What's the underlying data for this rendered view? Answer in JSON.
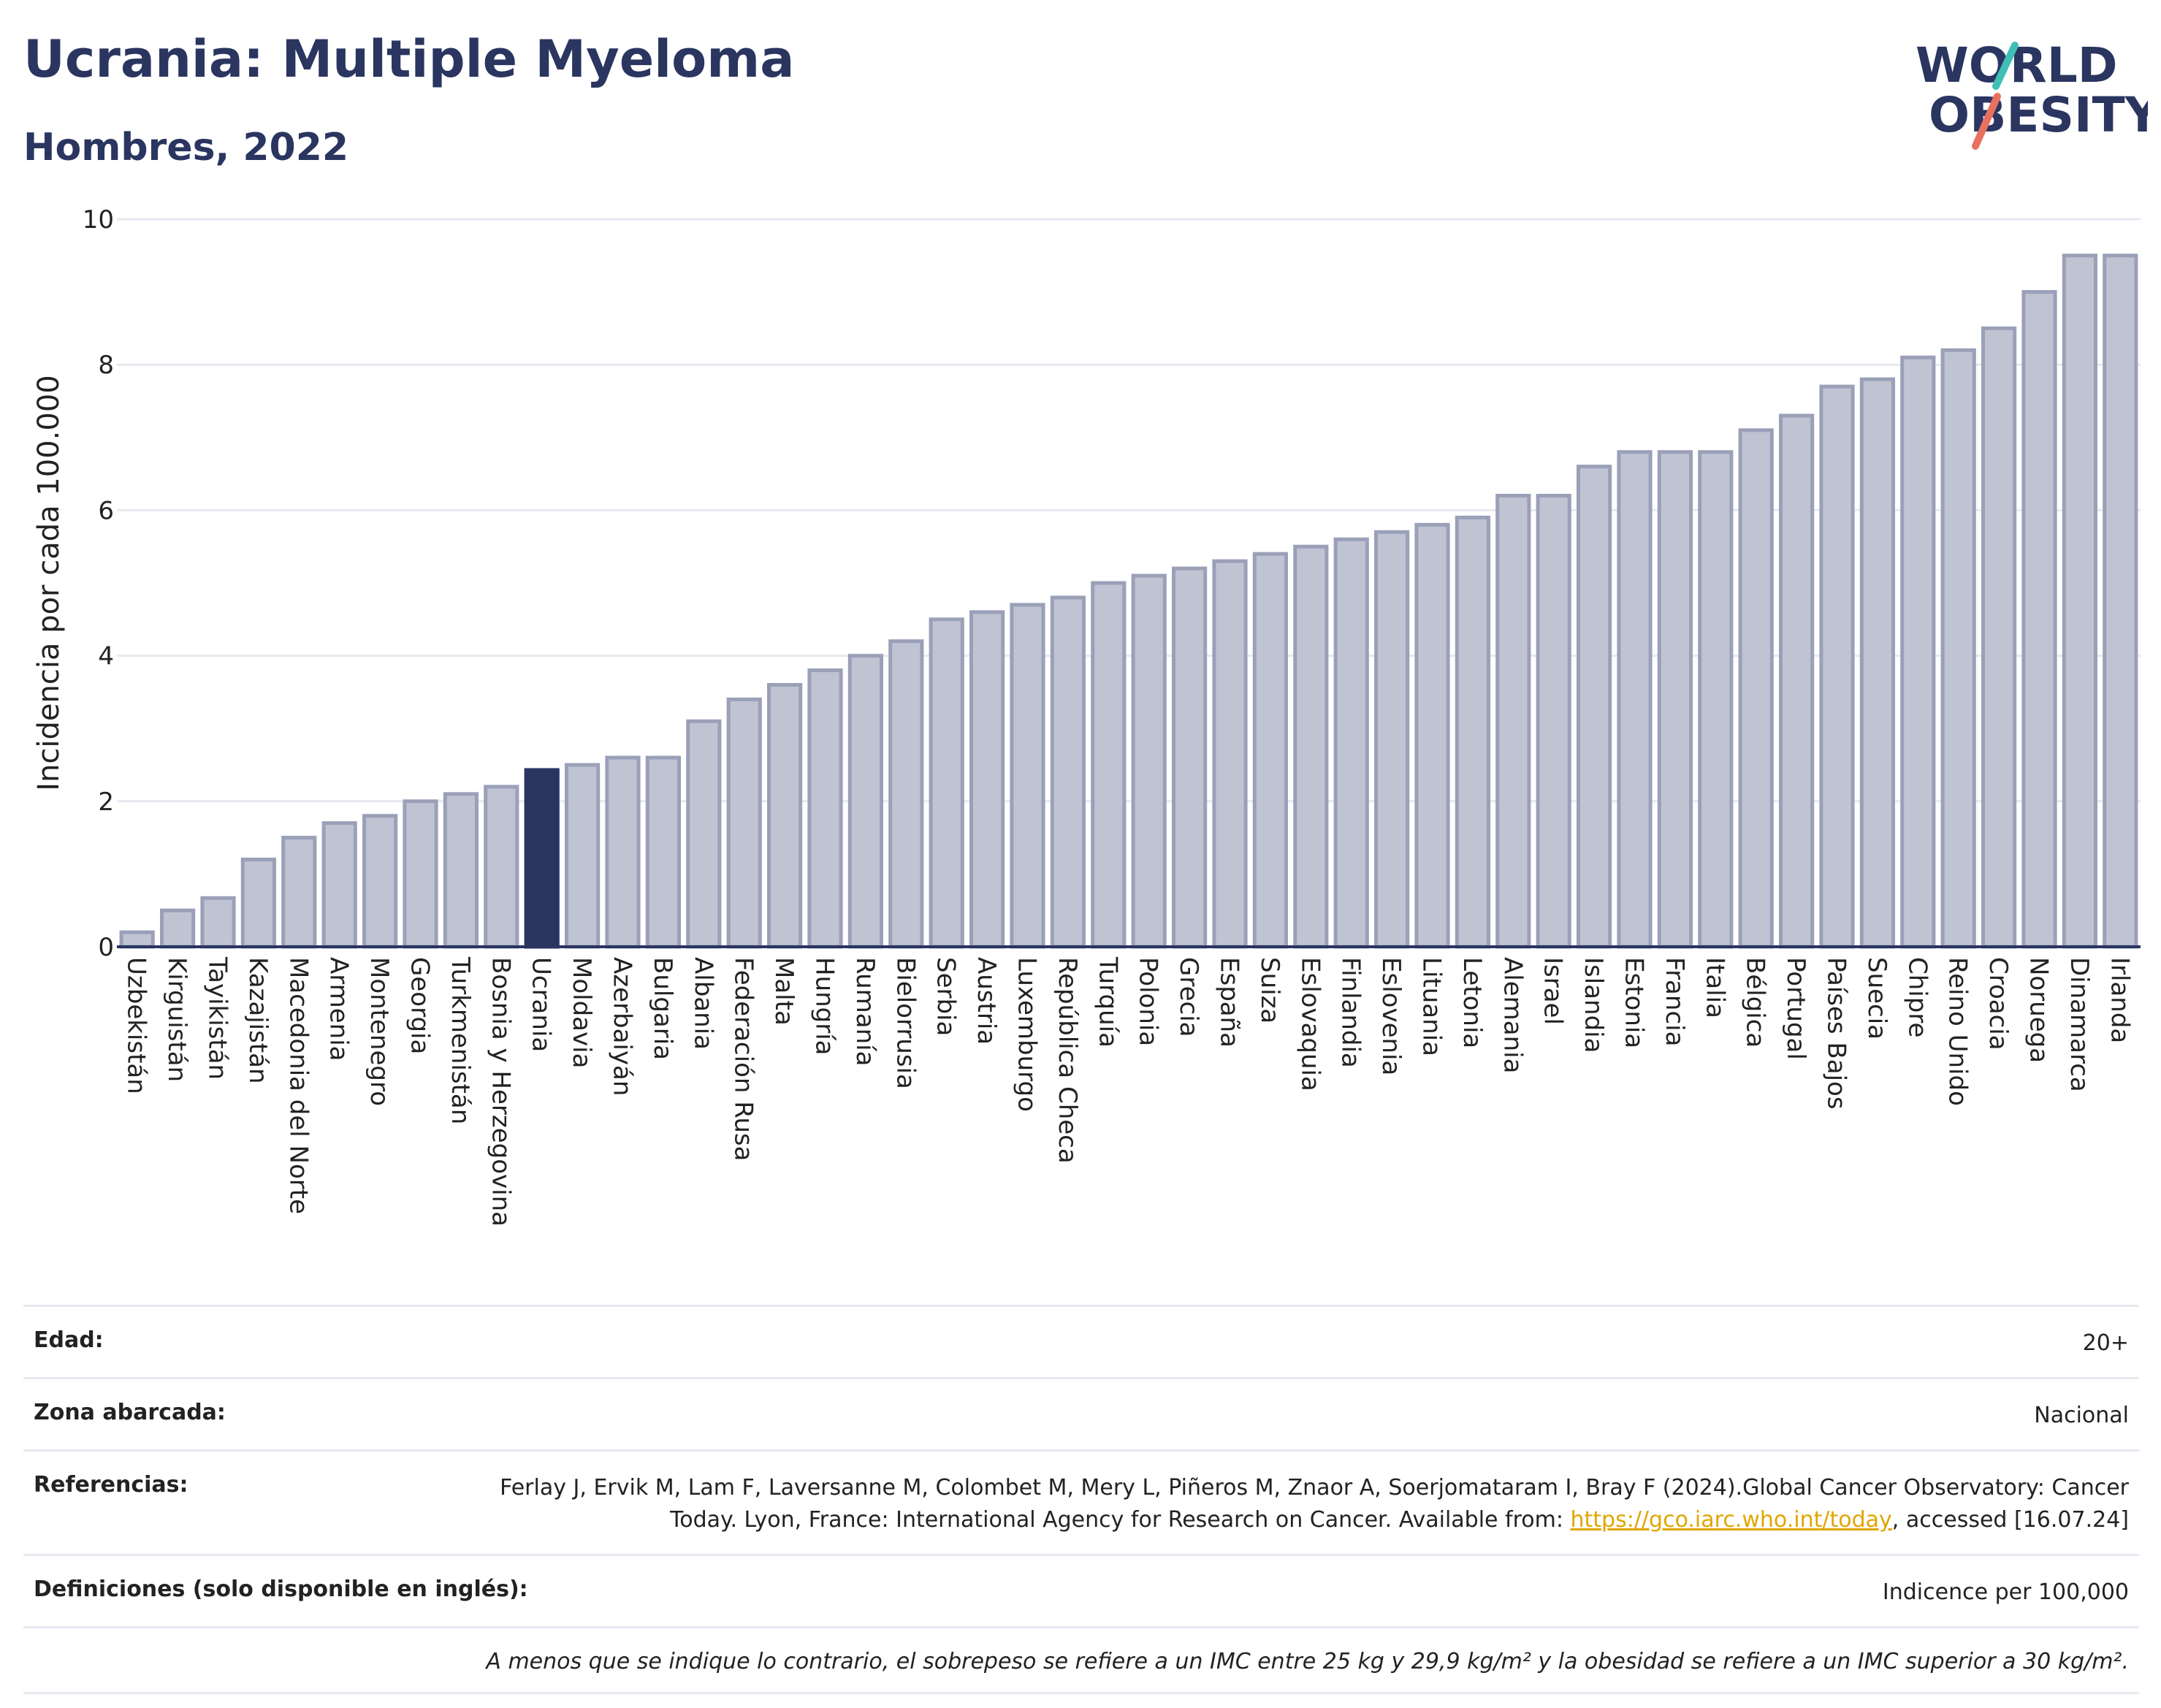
{
  "header": {
    "title": "Ucrania: Multiple Myeloma",
    "subtitle": "Hombres, 2022"
  },
  "logo": {
    "line1": "WORLD",
    "line2": "OBESITY",
    "slash_color_top": "#3fbfb5",
    "slash_color_bottom": "#e8705f"
  },
  "colors": {
    "bar": "#bfc3d2",
    "bar_border": "#9aa0b8",
    "highlight": "#2a3560",
    "axis": "#2a3560",
    "grid": "#e6e9f0"
  },
  "chart_data": {
    "type": "bar",
    "title": "Ucrania: Multiple Myeloma",
    "subtitle": "Hombres, 2022",
    "ylabel": "Incidencia por cada 100.000",
    "ylim": [
      0,
      10
    ],
    "yticks": [
      0,
      2,
      4,
      6,
      8,
      10
    ],
    "grid": true,
    "highlight": "Ucrania",
    "categories": [
      "Uzbekistán",
      "Kirguistán",
      "Tayikistán",
      "Kazajistán",
      "Macedonia del Norte",
      "Armenia",
      "Montenegro",
      "Georgia",
      "Turkmenistán",
      "Bosnia y Herzegovina",
      "Ucrania",
      "Moldavia",
      "Azerbaiyán",
      "Bulgaria",
      "Albania",
      "Federación Rusa",
      "Malta",
      "Hungría",
      "Rumanía",
      "Bielorrusia",
      "Serbia",
      "Austria",
      "Luxemburgo",
      "República Checa",
      "Turquía",
      "Polonia",
      "Grecia",
      "España",
      "Suiza",
      "Eslovaquia",
      "Finlandia",
      "Eslovenia",
      "Lituania",
      "Letonia",
      "Alemania",
      "Israel",
      "Islandia",
      "Estonia",
      "Francia",
      "Italia",
      "Bélgica",
      "Portugal",
      "Países Bajos",
      "Suecia",
      "Chipre",
      "Reino Unido",
      "Croacia",
      "Noruega",
      "Dinamarca",
      "Irlanda"
    ],
    "values": [
      0.2,
      0.5,
      0.67,
      1.2,
      1.5,
      1.7,
      1.8,
      2.0,
      2.1,
      2.2,
      2.43,
      2.5,
      2.6,
      2.6,
      3.1,
      3.4,
      3.6,
      3.8,
      4.0,
      4.2,
      4.5,
      4.6,
      4.7,
      4.8,
      5.0,
      5.1,
      5.2,
      5.3,
      5.4,
      5.5,
      5.6,
      5.7,
      5.8,
      5.9,
      6.2,
      6.2,
      6.6,
      6.8,
      6.8,
      6.8,
      7.1,
      7.3,
      7.7,
      7.8,
      8.1,
      8.2,
      8.5,
      9.0,
      9.5,
      9.5
    ]
  },
  "info": {
    "rows": [
      {
        "label": "Edad:",
        "value": "20+"
      },
      {
        "label": "Zona abarcada:",
        "value": "Nacional"
      },
      {
        "label": "Referencias:",
        "value": "Ferlay J, Ervik M, Lam F, Laversanne M, Colombet M, Mery L, Piñeros M, Znaor A, Soerjomataram I, Bray F (2024).Global Cancer Observatory: Cancer Today. Lyon, France: International Agency for Research on Cancer. Available from:",
        "link": "https://gco.iarc.who.int/today",
        "suffix": ", accessed [16.07.24]"
      },
      {
        "label": "Definiciones (solo disponible en inglés):",
        "value": "Indicence per 100,000"
      }
    ],
    "note": "A menos que se indique lo contrario, el sobrepeso se refiere a un IMC entre 25 kg y 29,9 kg/m² y la obesidad se refiere a un IMC superior a 30 kg/m²."
  }
}
